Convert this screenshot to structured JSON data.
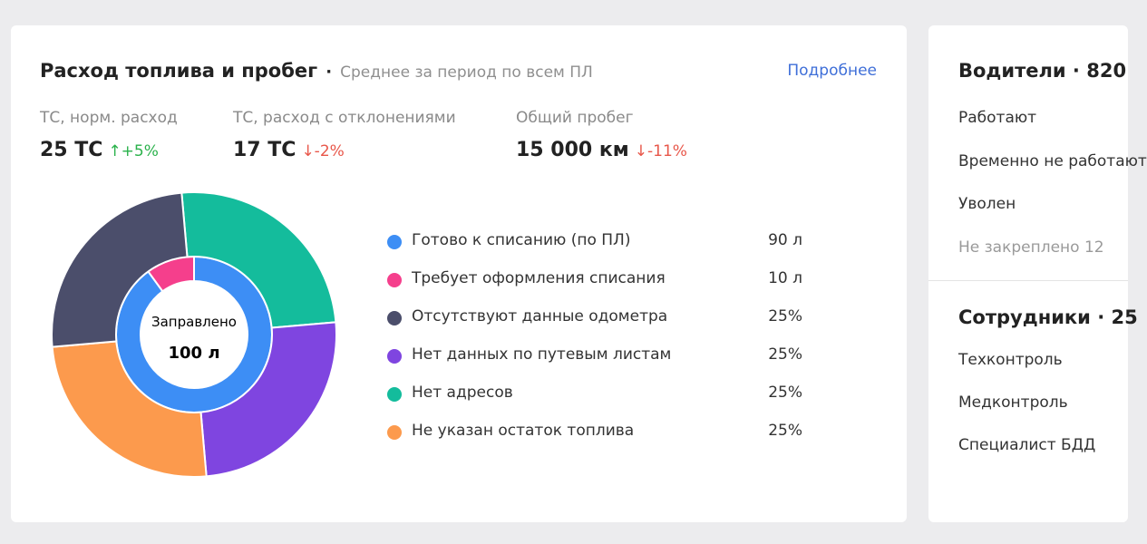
{
  "fuel": {
    "title": "Расход топлива и пробег",
    "separator": "·",
    "subtitle": "Среднее за период по всем ПЛ",
    "details_link": "Подробнее",
    "stats": [
      {
        "label": "ТС, норм. расход",
        "value": "25 ТС",
        "delta": "↑+5%",
        "trend": "up"
      },
      {
        "label": "ТС, расход с отклонениями",
        "value": "17 ТС",
        "delta": "↓-2%",
        "trend": "down"
      },
      {
        "label": "Общий пробег",
        "value": "15 000 км",
        "delta": "↓-11%",
        "trend": "down"
      }
    ],
    "center": {
      "label": "Заправлено",
      "value": "100 л"
    },
    "legend": [
      {
        "label": "Готово к списанию (по ПЛ)",
        "value": "90 л",
        "color": "#3d8ef5"
      },
      {
        "label": "Требует оформления списания",
        "value": "10 л",
        "color": "#f53f8c"
      },
      {
        "label": "Отсутствуют данные одометра",
        "value": "25%",
        "color": "#4b4e6b"
      },
      {
        "label": "Нет данных по путевым листам",
        "value": "25%",
        "color": "#7f45e0"
      },
      {
        "label": "Нет адресов",
        "value": "25%",
        "color": "#14bc9c"
      },
      {
        "label": "Не указан остаток топлива",
        "value": "25%",
        "color": "#fc9a4d"
      }
    ]
  },
  "chart_data": {
    "type": "pie",
    "rings": [
      {
        "name": "inner",
        "slices": [
          {
            "label": "Готово к списанию (по ПЛ)",
            "value": 90,
            "color": "#3d8ef5"
          },
          {
            "label": "Требует оформления списания",
            "value": 10,
            "color": "#f53f8c"
          }
        ]
      },
      {
        "name": "outer",
        "slices": [
          {
            "label": "Нет адресов",
            "value": 25,
            "color": "#14bc9c"
          },
          {
            "label": "Нет данных по путевым листам",
            "value": 25,
            "color": "#7f45e0"
          },
          {
            "label": "Не указан остаток топлива",
            "value": 25,
            "color": "#fc9a4d"
          },
          {
            "label": "Отсутствуют данные одометра",
            "value": 25,
            "color": "#4b4e6b"
          }
        ]
      }
    ]
  },
  "drivers": {
    "title": "Водители · 820",
    "rows": [
      "Работают",
      "Временно не работают",
      "Уволен"
    ],
    "muted_row": "Не закреплено 12"
  },
  "staff": {
    "title": "Сотрудники · 25",
    "rows": [
      "Техконтроль",
      "Медконтроль",
      "Специалист БДД"
    ]
  }
}
